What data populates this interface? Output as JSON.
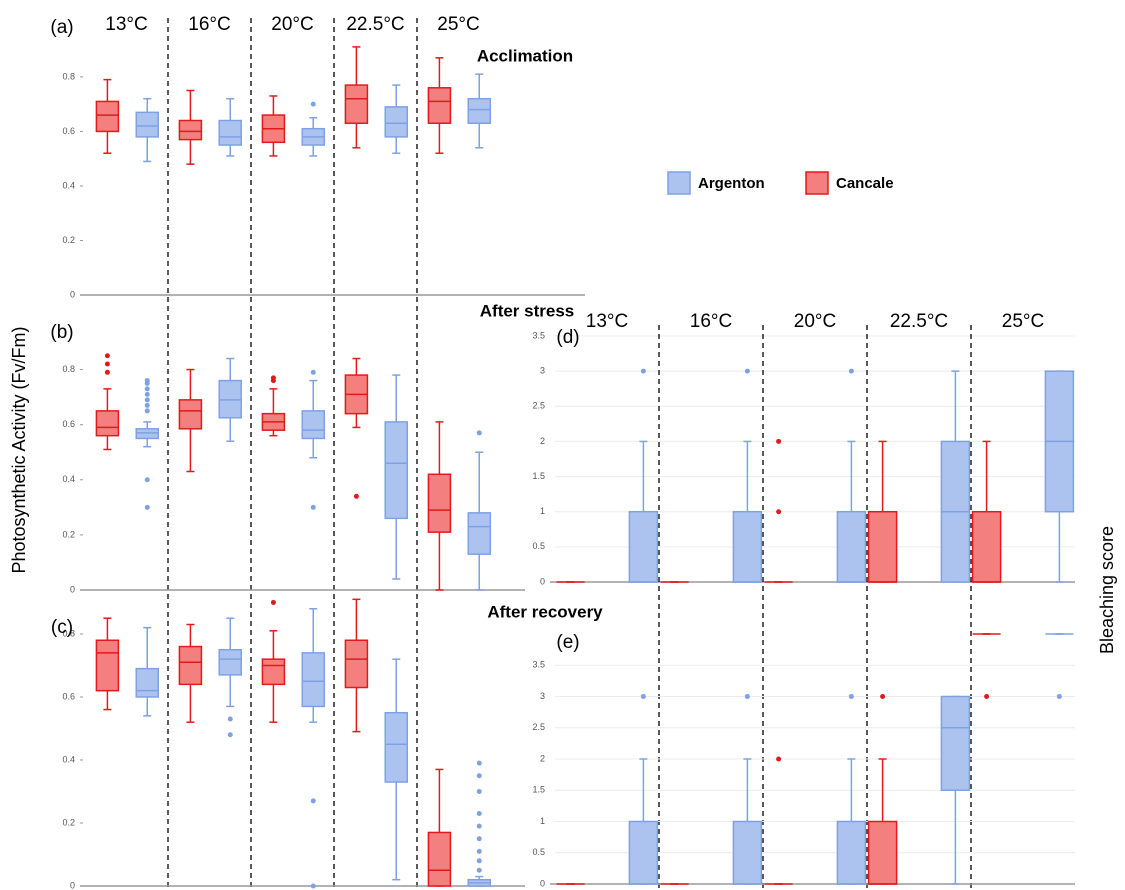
{
  "ylabel": "Photosynthetic Activity (Fv/Fm)",
  "y2label": "Bleaching score",
  "legend": [
    {
      "name": "Argenton",
      "color": "#7ea1e4"
    },
    {
      "name": "Cancale",
      "color": "#e31a1c"
    }
  ],
  "chart_data": [
    {
      "type": "box",
      "label": "(a)",
      "title": "Acclimation",
      "categories": [
        "13°C",
        "16°C",
        "20°C",
        "22.5°C",
        "25°C"
      ],
      "ylim": [
        0,
        0.95
      ],
      "yticks": [
        0,
        0.2,
        0.4,
        0.6,
        0.8
      ],
      "grid": false,
      "series": [
        {
          "color": "#e31a1c",
          "fill": "#f47f7f",
          "values": [
            {
              "min": 0.52,
              "q1": 0.6,
              "median": 0.66,
              "q3": 0.71,
              "max": 0.79,
              "outliers": []
            },
            {
              "min": 0.48,
              "q1": 0.57,
              "median": 0.6,
              "q3": 0.64,
              "max": 0.75,
              "outliers": []
            },
            {
              "min": 0.51,
              "q1": 0.56,
              "median": 0.61,
              "q3": 0.66,
              "max": 0.73,
              "outliers": []
            },
            {
              "min": 0.54,
              "q1": 0.63,
              "median": 0.72,
              "q3": 0.77,
              "max": 0.91,
              "outliers": []
            },
            {
              "min": 0.52,
              "q1": 0.63,
              "median": 0.71,
              "q3": 0.76,
              "max": 0.87,
              "outliers": []
            }
          ]
        },
        {
          "color": "#7ea1e4",
          "fill": "#adc3ef",
          "values": [
            {
              "min": 0.49,
              "q1": 0.58,
              "median": 0.62,
              "q3": 0.67,
              "max": 0.72,
              "outliers": []
            },
            {
              "min": 0.51,
              "q1": 0.55,
              "median": 0.58,
              "q3": 0.64,
              "max": 0.72,
              "outliers": []
            },
            {
              "min": 0.51,
              "q1": 0.55,
              "median": 0.58,
              "q3": 0.61,
              "max": 0.65,
              "outliers": [
                0.7
              ]
            },
            {
              "min": 0.52,
              "q1": 0.58,
              "median": 0.63,
              "q3": 0.69,
              "max": 0.77,
              "outliers": []
            },
            {
              "min": 0.54,
              "q1": 0.63,
              "median": 0.68,
              "q3": 0.72,
              "max": 0.81,
              "outliers": []
            }
          ]
        }
      ]
    },
    {
      "type": "box",
      "label": "(b)",
      "title": "After stress",
      "ylim": [
        0,
        0.9
      ],
      "yticks": [
        0,
        0.2,
        0.4,
        0.6,
        0.8
      ],
      "grid": false,
      "series": [
        {
          "color": "#e31a1c",
          "fill": "#f47f7f",
          "values": [
            {
              "min": 0.51,
              "q1": 0.56,
              "median": 0.59,
              "q3": 0.65,
              "max": 0.73,
              "outliers": [
                0.85,
                0.82,
                0.79
              ]
            },
            {
              "min": 0.43,
              "q1": 0.585,
              "median": 0.65,
              "q3": 0.69,
              "max": 0.8,
              "outliers": []
            },
            {
              "min": 0.56,
              "q1": 0.58,
              "median": 0.61,
              "q3": 0.64,
              "max": 0.73,
              "outliers": [
                0.77,
                0.76
              ]
            },
            {
              "min": 0.59,
              "q1": 0.64,
              "median": 0.71,
              "q3": 0.78,
              "max": 0.84,
              "outliers": [
                0.34
              ]
            },
            {
              "min": 0,
              "q1": 0.21,
              "median": 0.29,
              "q3": 0.42,
              "max": 0.61,
              "outliers": []
            }
          ]
        },
        {
          "color": "#7ea1e4",
          "fill": "#adc3ef",
          "values": [
            {
              "min": 0.52,
              "q1": 0.55,
              "median": 0.57,
              "q3": 0.585,
              "max": 0.61,
              "outliers": [
                0.76,
                0.75,
                0.73,
                0.71,
                0.69,
                0.67,
                0.65,
                0.4,
                0.3
              ]
            },
            {
              "min": 0.54,
              "q1": 0.625,
              "median": 0.69,
              "q3": 0.76,
              "max": 0.84,
              "outliers": []
            },
            {
              "min": 0.48,
              "q1": 0.55,
              "median": 0.58,
              "q3": 0.65,
              "max": 0.76,
              "outliers": [
                0.79,
                0.3
              ]
            },
            {
              "min": 0.04,
              "q1": 0.26,
              "median": 0.46,
              "q3": 0.61,
              "max": 0.78,
              "outliers": []
            },
            {
              "min": 0,
              "q1": 0.13,
              "median": 0.23,
              "q3": 0.28,
              "max": 0.5,
              "outliers": [
                0.57
              ]
            }
          ]
        }
      ]
    },
    {
      "type": "box",
      "label": "(c)",
      "title": "After recovery",
      "ylim": [
        0,
        0.93
      ],
      "yticks": [
        0,
        0.2,
        0.4,
        0.6,
        0.8
      ],
      "grid": false,
      "series": [
        {
          "color": "#e31a1c",
          "fill": "#f47f7f",
          "values": [
            {
              "min": 0.56,
              "q1": 0.62,
              "median": 0.74,
              "q3": 0.78,
              "max": 0.85,
              "outliers": []
            },
            {
              "min": 0.52,
              "q1": 0.64,
              "median": 0.71,
              "q3": 0.76,
              "max": 0.83,
              "outliers": []
            },
            {
              "min": 0.52,
              "q1": 0.64,
              "median": 0.7,
              "q3": 0.72,
              "max": 0.81,
              "outliers": [
                0.9
              ]
            },
            {
              "min": 0.49,
              "q1": 0.63,
              "median": 0.72,
              "q3": 0.78,
              "max": 0.91,
              "outliers": []
            },
            {
              "min": 0,
              "q1": 0,
              "median": 0.05,
              "q3": 0.17,
              "max": 0.37,
              "outliers": []
            }
          ]
        },
        {
          "color": "#7ea1e4",
          "fill": "#adc3ef",
          "values": [
            {
              "min": 0.54,
              "q1": 0.6,
              "median": 0.62,
              "q3": 0.69,
              "max": 0.82,
              "outliers": []
            },
            {
              "min": 0.57,
              "q1": 0.67,
              "median": 0.72,
              "q3": 0.75,
              "max": 0.85,
              "outliers": [
                0.53,
                0.48
              ]
            },
            {
              "min": 0.52,
              "q1": 0.57,
              "median": 0.65,
              "q3": 0.74,
              "max": 0.88,
              "outliers": [
                0.27,
                0
              ]
            },
            {
              "min": 0.02,
              "q1": 0.33,
              "median": 0.45,
              "q3": 0.55,
              "max": 0.72,
              "outliers": []
            },
            {
              "min": 0,
              "q1": 0,
              "median": 0.01,
              "q3": 0.02,
              "max": 0.03,
              "outliers": [
                0.39,
                0.35,
                0.3,
                0.23,
                0.19,
                0.15,
                0.11,
                0.08,
                0.05
              ]
            }
          ]
        }
      ]
    },
    {
      "type": "box",
      "label": "(d)",
      "categories": [
        "13°C",
        "16°C",
        "20°C",
        "22.5°C",
        "25°C"
      ],
      "ylim": [
        0,
        3.5
      ],
      "yticks": [
        0,
        0.5,
        1,
        1.5,
        2,
        2.5,
        3,
        3.5
      ],
      "grid": true,
      "series": [
        {
          "color": "#e31a1c",
          "fill": "#f47f7f",
          "values": [
            {
              "min": 0,
              "q1": 0,
              "median": 0,
              "q3": 0,
              "max": 0,
              "outliers": []
            },
            {
              "min": 0,
              "q1": 0,
              "median": 0,
              "q3": 0,
              "max": 0,
              "outliers": []
            },
            {
              "min": 0,
              "q1": 0,
              "median": 0,
              "q3": 0,
              "max": 0,
              "outliers": [
                2,
                1
              ]
            },
            {
              "min": 0,
              "q1": 0,
              "median": 0,
              "q3": 1,
              "max": 2,
              "outliers": []
            },
            {
              "min": 0,
              "q1": 0,
              "median": 0,
              "q3": 1,
              "max": 2,
              "outliers": []
            }
          ]
        },
        {
          "color": "#7ea1e4",
          "fill": "#adc3ef",
          "values": [
            {
              "min": 0,
              "q1": 0,
              "median": 0,
              "q3": 1,
              "max": 2,
              "outliers": [
                3
              ]
            },
            {
              "min": 0,
              "q1": 0,
              "median": 0,
              "q3": 1,
              "max": 2,
              "outliers": [
                3
              ]
            },
            {
              "min": 0,
              "q1": 0,
              "median": 0,
              "q3": 1,
              "max": 2,
              "outliers": [
                3
              ]
            },
            {
              "min": 0,
              "q1": 0,
              "median": 1,
              "q3": 2,
              "max": 3,
              "outliers": []
            },
            {
              "min": 0,
              "q1": 1,
              "median": 2,
              "q3": 3,
              "max": 3,
              "outliers": []
            }
          ]
        }
      ]
    },
    {
      "type": "box",
      "label": "(e)",
      "ylim": [
        0,
        4
      ],
      "yticks": [
        0,
        0.5,
        1,
        1.5,
        2,
        2.5,
        3,
        3.5
      ],
      "grid": true,
      "series": [
        {
          "color": "#e31a1c",
          "fill": "#f47f7f",
          "values": [
            {
              "min": 0,
              "q1": 0,
              "median": 0,
              "q3": 0,
              "max": 0,
              "outliers": []
            },
            {
              "min": 0,
              "q1": 0,
              "median": 0,
              "q3": 0,
              "max": 0,
              "outliers": []
            },
            {
              "min": 0,
              "q1": 0,
              "median": 0,
              "q3": 0,
              "max": 0,
              "outliers": [
                2
              ]
            },
            {
              "min": 0,
              "q1": 0,
              "median": 0,
              "q3": 1,
              "max": 2,
              "outliers": [
                3
              ]
            },
            {
              "min": 4,
              "q1": 4,
              "median": 4,
              "q3": 4,
              "max": 4,
              "outliers": [
                3
              ]
            }
          ]
        },
        {
          "color": "#7ea1e4",
          "fill": "#adc3ef",
          "values": [
            {
              "min": 0,
              "q1": 0,
              "median": 0,
              "q3": 1,
              "max": 2,
              "outliers": [
                3
              ]
            },
            {
              "min": 0,
              "q1": 0,
              "median": 0,
              "q3": 1,
              "max": 2,
              "outliers": [
                3
              ]
            },
            {
              "min": 0,
              "q1": 0,
              "median": 0,
              "q3": 1,
              "max": 2,
              "outliers": [
                3
              ]
            },
            {
              "min": 0,
              "q1": 1.5,
              "median": 2.5,
              "q3": 3,
              "max": 3,
              "outliers": []
            },
            {
              "min": 4,
              "q1": 4,
              "median": 4,
              "q3": 4,
              "max": 4,
              "outliers": [
                3
              ]
            }
          ]
        }
      ]
    }
  ]
}
